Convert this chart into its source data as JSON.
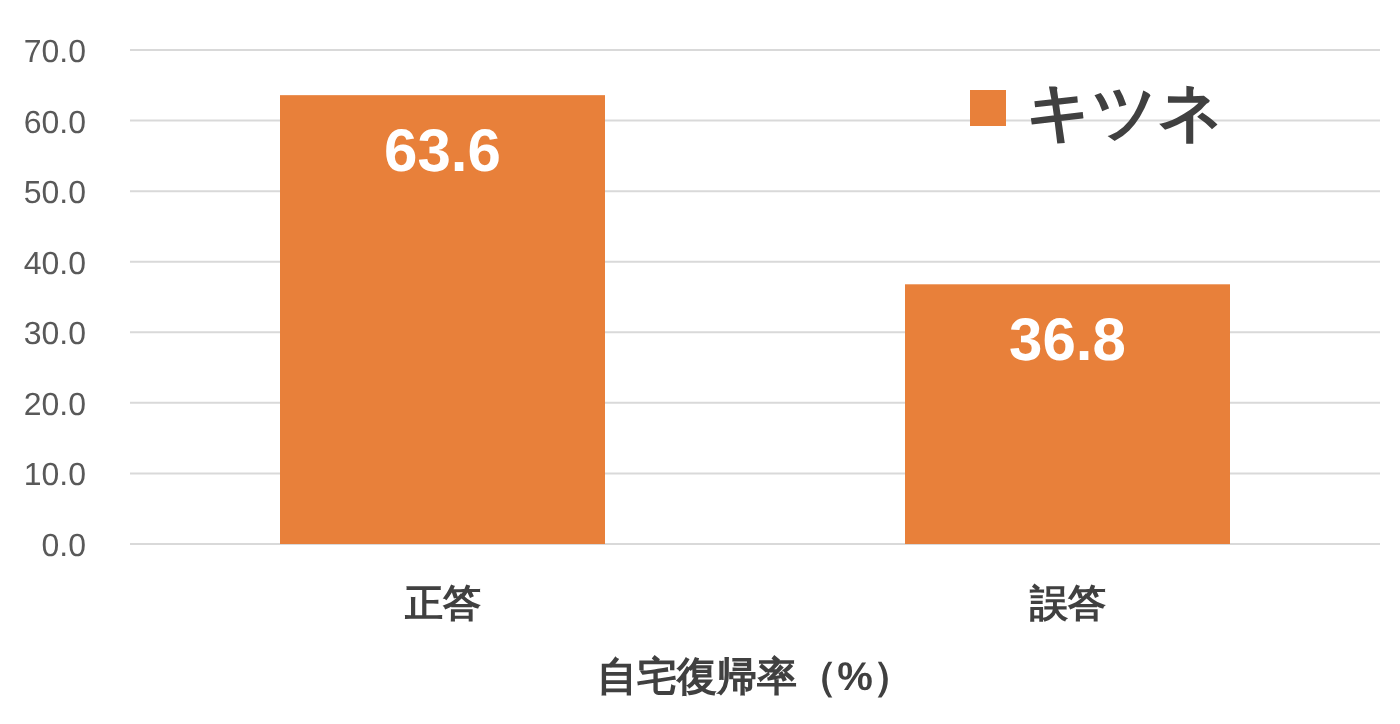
{
  "chart_data": {
    "type": "bar",
    "xlabel": "自宅復帰率（%）",
    "categories": [
      "正答",
      "誤答"
    ],
    "series": [
      {
        "name": "キツネ",
        "color": "#e8803a",
        "values": [
          63.6,
          36.8
        ]
      }
    ],
    "ylim": [
      0,
      70
    ],
    "yticks": [
      {
        "value": 0,
        "label": "0.0"
      },
      {
        "value": 10,
        "label": "10.0"
      },
      {
        "value": 20,
        "label": "20.0"
      },
      {
        "value": 30,
        "label": "30.0"
      },
      {
        "value": 40,
        "label": "40.0"
      },
      {
        "value": 50,
        "label": "50.0"
      },
      {
        "value": 60,
        "label": "60.0"
      },
      {
        "value": 70,
        "label": "70.0"
      }
    ],
    "grid": "y",
    "legend": "top right",
    "data_labels": true
  }
}
